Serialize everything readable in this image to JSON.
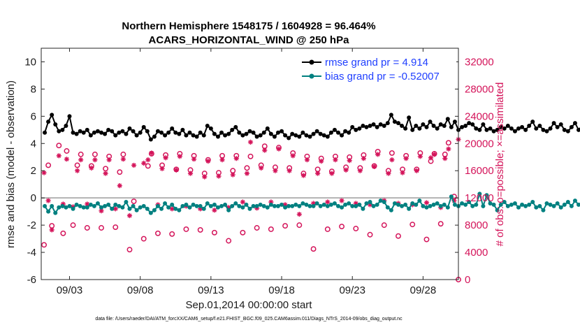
{
  "chart_data": {
    "type": "line",
    "title_line1": "Northern Hemisphere 1548175 / 1604928 = 96.464%",
    "title_line2": "ACARS_HORIZONTAL_WIND @ 250 hPa",
    "ylabel": "rmse and bias (model - observation)",
    "y2label": "# of obs: o=possible; ×=assimilated",
    "xlabel": "Sep.01,2014 00:00:00 start",
    "footer": "data file: /Users/raeder/DAI/ATM_forcXX/CAM6_setup/f.e21.FHIST_BGC.f09_025.CAM6assim.011/Diags_NTrS_2014-09/obs_diag_output.nc",
    "xlim": [
      1,
      30.5
    ],
    "ylim": [
      -6,
      11
    ],
    "y2lim": [
      0,
      34000
    ],
    "yticks": [
      "-6",
      "-4",
      "-2",
      "0",
      "2",
      "4",
      "6",
      "8",
      "10"
    ],
    "y2ticks": [
      "0",
      "4000",
      "8000",
      "12000",
      "16000",
      "20000",
      "24000",
      "28000",
      "32000"
    ],
    "xticks": [
      {
        "day": 3,
        "label": "09/03"
      },
      {
        "day": 8,
        "label": "09/08"
      },
      {
        "day": 13,
        "label": "09/13"
      },
      {
        "day": 18,
        "label": "09/18"
      },
      {
        "day": 23,
        "label": "09/23"
      },
      {
        "day": 28,
        "label": "09/28"
      }
    ],
    "zero_line": 0,
    "bin_hours": 6,
    "series": [
      {
        "name": "rmse grand pr = 4.914",
        "color": "#000000",
        "values": [
          4.8,
          5.6,
          6.1,
          5.4,
          4.9,
          5.0,
          5.3,
          6.0,
          4.8,
          4.7,
          4.9,
          4.8,
          5.0,
          4.6,
          4.8,
          4.9,
          4.8,
          4.7,
          5.0,
          4.9,
          4.6,
          4.8,
          4.9,
          4.7,
          5.1,
          4.9,
          4.6,
          4.8,
          5.2,
          4.9,
          4.3,
          4.5,
          4.9,
          4.8,
          4.6,
          4.8,
          5.1,
          4.8,
          4.7,
          5.0,
          4.6,
          4.8,
          4.6,
          4.5,
          4.8,
          4.6,
          5.3,
          5.1,
          4.7,
          4.5,
          4.8,
          4.6,
          4.7,
          5.0,
          5.2,
          4.8,
          4.6,
          4.7,
          4.9,
          4.8,
          4.5,
          4.6,
          4.8,
          5.1,
          4.7,
          4.5,
          4.8,
          4.9,
          4.6,
          4.4,
          4.7,
          4.6,
          4.5,
          4.8,
          4.6,
          4.5,
          4.7,
          4.9,
          4.7,
          4.6,
          4.5,
          4.8,
          5.0,
          4.8,
          4.6,
          4.9,
          4.8,
          5.2,
          5.0,
          5.1,
          5.3,
          5.2,
          5.3,
          5.4,
          5.2,
          5.4,
          5.3,
          5.5,
          6.1,
          5.6,
          5.5,
          5.3,
          5.1,
          5.9,
          5.0,
          5.3,
          5.1,
          5.4,
          5.2,
          5.6,
          5.3,
          5.1,
          5.4,
          5.3,
          5.8,
          5.2,
          5.6,
          5.0,
          5.2,
          5.3,
          5.5,
          5.4,
          5.1,
          5.0,
          5.4,
          5.0,
          5.1,
          4.9,
          5.0,
          5.2,
          5.1,
          5.3,
          5.1,
          4.9,
          5.1,
          5.2,
          5.0,
          5.3,
          5.6,
          5.1,
          5.3,
          5.0,
          4.9,
          5.1,
          5.5,
          5.2,
          5.4,
          5.0,
          4.9,
          5.2,
          5.5,
          5.0,
          5.3,
          5.6,
          5.2,
          5.4,
          5.9,
          5.4,
          5.7,
          5.2,
          5.4,
          5.8,
          5.6,
          5.5,
          5.1,
          5.3,
          5.0,
          4.7,
          5.1,
          5.3,
          5.2,
          5.6,
          5.4,
          5.5,
          5.7,
          5.8,
          5.6,
          5.3
        ]
      },
      {
        "name": "bias grand pr = -0.52007",
        "color": "#008080",
        "values": [
          -0.6,
          -1.0,
          -0.6,
          -1.1,
          -0.7,
          -0.6,
          -0.7,
          -0.6,
          -0.8,
          -0.5,
          -0.6,
          -0.7,
          -0.7,
          -0.5,
          -0.6,
          -0.4,
          -0.7,
          -0.6,
          -0.5,
          -0.8,
          -0.5,
          -0.6,
          -0.7,
          -0.3,
          -0.8,
          -0.6,
          -0.9,
          -0.7,
          -0.6,
          -0.8,
          -1.1,
          -0.9,
          -0.6,
          -0.8,
          -0.4,
          -0.7,
          -0.5,
          -0.8,
          -0.9,
          -0.6,
          -0.5,
          -0.7,
          -0.5,
          -0.6,
          -0.6,
          -0.8,
          -0.4,
          -0.6,
          -0.5,
          -0.7,
          -0.6,
          -0.5,
          -0.9,
          -0.6,
          -0.4,
          -0.6,
          -0.7,
          -0.5,
          -0.8,
          -0.6,
          -0.6,
          -0.5,
          -0.6,
          -0.7,
          -0.5,
          -0.6,
          -0.6,
          -0.5,
          -0.7,
          -0.6,
          -0.6,
          -0.5,
          -0.6,
          -0.4,
          -0.5,
          -0.6,
          -0.6,
          -0.4,
          -0.6,
          -0.5,
          -0.6,
          -0.5,
          -0.4,
          -0.6,
          -0.7,
          -0.5,
          -0.4,
          -0.6,
          -0.6,
          -0.5,
          -0.8,
          -0.4,
          -0.3,
          -0.6,
          -0.5,
          -0.2,
          -0.3,
          -0.7,
          -0.9,
          -0.4,
          -0.5,
          -0.6,
          -0.5,
          -0.8,
          -0.4,
          -0.5,
          -0.2,
          -0.6,
          -0.7,
          -0.6,
          -0.5,
          -0.4,
          -0.6,
          -0.5,
          -0.7,
          0.1,
          -0.5,
          -0.6,
          -0.4,
          -0.5,
          -0.3,
          -0.6,
          -0.5,
          0.3,
          -0.6,
          0.2,
          -0.4,
          -0.5,
          -0.9,
          -0.5,
          -0.3,
          -0.6,
          -0.5,
          -0.4,
          -0.7,
          -0.5,
          -0.6,
          -0.5,
          -0.3,
          -0.7,
          -0.6,
          -0.9,
          -0.4,
          -0.5,
          -0.6,
          -0.4,
          -0.7,
          -0.5,
          -0.3,
          -0.6,
          -0.2,
          -0.5,
          -0.6,
          -0.7,
          -0.5,
          -0.6,
          -0.3,
          -0.6,
          -0.4,
          -0.6,
          -0.4,
          -0.5,
          -0.6,
          -0.3,
          -0.5,
          -0.7,
          -0.5,
          -0.4,
          -0.9,
          -0.6,
          -0.5,
          -0.4,
          -0.6,
          -0.5,
          -0.7,
          -0.5,
          -0.8,
          -0.4,
          -0.5,
          -0.6
        ]
      }
    ],
    "obs_possible": [
      {
        "day": 1.2,
        "v": 5100
      },
      {
        "day": 1.5,
        "v": 16800
      },
      {
        "day": 1.75,
        "v": 7900
      },
      {
        "day": 2.25,
        "v": 19700
      },
      {
        "day": 2.55,
        "v": 6800
      },
      {
        "day": 2.8,
        "v": 18900
      },
      {
        "day": 3.25,
        "v": 8000
      },
      {
        "day": 3.55,
        "v": 16800
      },
      {
        "day": 3.8,
        "v": 18400
      },
      {
        "day": 4.25,
        "v": 7600
      },
      {
        "day": 4.55,
        "v": 16700
      },
      {
        "day": 4.8,
        "v": 18400
      },
      {
        "day": 5.25,
        "v": 7600
      },
      {
        "day": 5.55,
        "v": 16300
      },
      {
        "day": 5.8,
        "v": 18100
      },
      {
        "day": 6.25,
        "v": 7700
      },
      {
        "day": 6.55,
        "v": 15800
      },
      {
        "day": 6.8,
        "v": 18400
      },
      {
        "day": 7.25,
        "v": 4400
      },
      {
        "day": 7.55,
        "v": 11500
      },
      {
        "day": 8.25,
        "v": 6000
      },
      {
        "day": 8.55,
        "v": 16700
      },
      {
        "day": 8.8,
        "v": 18500
      },
      {
        "day": 9.25,
        "v": 6800
      },
      {
        "day": 9.55,
        "v": 16800
      },
      {
        "day": 9.8,
        "v": 18300
      },
      {
        "day": 10.25,
        "v": 6700
      },
      {
        "day": 10.55,
        "v": 16200
      },
      {
        "day": 10.8,
        "v": 18500
      },
      {
        "day": 11.25,
        "v": 7400
      },
      {
        "day": 11.55,
        "v": 16100
      },
      {
        "day": 11.8,
        "v": 18200
      },
      {
        "day": 12.25,
        "v": 7300
      },
      {
        "day": 12.55,
        "v": 15600
      },
      {
        "day": 12.8,
        "v": 17600
      },
      {
        "day": 13.25,
        "v": 6900
      },
      {
        "day": 13.55,
        "v": 15700
      },
      {
        "day": 13.8,
        "v": 18200
      },
      {
        "day": 14.25,
        "v": 5700
      },
      {
        "day": 14.55,
        "v": 16000
      },
      {
        "day": 14.8,
        "v": 18200
      },
      {
        "day": 15.25,
        "v": 6900
      },
      {
        "day": 15.55,
        "v": 16400
      },
      {
        "day": 15.8,
        "v": 18100
      },
      {
        "day": 16.25,
        "v": 7600
      },
      {
        "day": 16.55,
        "v": 16800
      },
      {
        "day": 16.8,
        "v": 19600
      },
      {
        "day": 17.25,
        "v": 7400
      },
      {
        "day": 17.55,
        "v": 16500
      },
      {
        "day": 17.8,
        "v": 19400
      },
      {
        "day": 18.25,
        "v": 7900
      },
      {
        "day": 18.55,
        "v": 16400
      },
      {
        "day": 18.8,
        "v": 18600
      },
      {
        "day": 19.25,
        "v": 8000
      },
      {
        "day": 19.55,
        "v": 15600
      },
      {
        "day": 19.8,
        "v": 18100
      },
      {
        "day": 20.25,
        "v": 4500
      },
      {
        "day": 20.55,
        "v": 16200
      },
      {
        "day": 20.8,
        "v": 17800
      },
      {
        "day": 21.25,
        "v": 7400
      },
      {
        "day": 21.55,
        "v": 15900
      },
      {
        "day": 21.8,
        "v": 18100
      },
      {
        "day": 22.25,
        "v": 7800
      },
      {
        "day": 22.55,
        "v": 16500
      },
      {
        "day": 22.8,
        "v": 18000
      },
      {
        "day": 23.25,
        "v": 7500
      },
      {
        "day": 23.55,
        "v": 16400
      },
      {
        "day": 23.8,
        "v": 18300
      },
      {
        "day": 24.25,
        "v": 6600
      },
      {
        "day": 24.55,
        "v": 16700
      },
      {
        "day": 24.8,
        "v": 18800
      },
      {
        "day": 25.25,
        "v": 8000
      },
      {
        "day": 25.55,
        "v": 16000
      },
      {
        "day": 25.8,
        "v": 18600
      },
      {
        "day": 26.25,
        "v": 6400
      },
      {
        "day": 26.55,
        "v": 16200
      },
      {
        "day": 26.8,
        "v": 18200
      },
      {
        "day": 27.25,
        "v": 8100
      },
      {
        "day": 27.55,
        "v": 16200
      },
      {
        "day": 27.8,
        "v": 18600
      },
      {
        "day": 28.25,
        "v": 5900
      },
      {
        "day": 28.55,
        "v": 17400
      },
      {
        "day": 28.8,
        "v": 18500
      },
      {
        "day": 29.25,
        "v": 8200
      },
      {
        "day": 29.55,
        "v": 18400
      },
      {
        "day": 29.8,
        "v": 20100
      },
      {
        "day": 30.2,
        "v": 12200
      },
      {
        "day": 30.5,
        "v": 0
      }
    ],
    "obs_assimilated": [
      {
        "day": 1.2,
        "v": 15700
      },
      {
        "day": 1.5,
        "v": 11600
      },
      {
        "day": 1.75,
        "v": 7300
      },
      {
        "day": 2.25,
        "v": 18200
      },
      {
        "day": 2.55,
        "v": 11100
      },
      {
        "day": 2.8,
        "v": 17700
      },
      {
        "day": 3.25,
        "v": 10700
      },
      {
        "day": 3.55,
        "v": 16000
      },
      {
        "day": 3.8,
        "v": 17600
      },
      {
        "day": 4.25,
        "v": 11100
      },
      {
        "day": 4.55,
        "v": 16400
      },
      {
        "day": 4.8,
        "v": 17600
      },
      {
        "day": 5.25,
        "v": 10100
      },
      {
        "day": 5.55,
        "v": 15600
      },
      {
        "day": 5.8,
        "v": 17600
      },
      {
        "day": 6.25,
        "v": 10400
      },
      {
        "day": 6.55,
        "v": 13800
      },
      {
        "day": 6.8,
        "v": 17700
      },
      {
        "day": 7.25,
        "v": 9400
      },
      {
        "day": 7.55,
        "v": 16800
      },
      {
        "day": 8.25,
        "v": 17100
      },
      {
        "day": 8.55,
        "v": 17600
      },
      {
        "day": 8.8,
        "v": 18600
      },
      {
        "day": 9.25,
        "v": 11000
      },
      {
        "day": 9.55,
        "v": 16300
      },
      {
        "day": 9.8,
        "v": 17900
      },
      {
        "day": 10.25,
        "v": 10400
      },
      {
        "day": 10.55,
        "v": 16100
      },
      {
        "day": 10.8,
        "v": 18100
      },
      {
        "day": 11.25,
        "v": 10800
      },
      {
        "day": 11.55,
        "v": 15600
      },
      {
        "day": 11.8,
        "v": 17700
      },
      {
        "day": 12.25,
        "v": 10400
      },
      {
        "day": 12.55,
        "v": 15100
      },
      {
        "day": 12.8,
        "v": 17400
      },
      {
        "day": 13.25,
        "v": 10200
      },
      {
        "day": 13.55,
        "v": 15200
      },
      {
        "day": 13.8,
        "v": 17600
      },
      {
        "day": 14.25,
        "v": 10600
      },
      {
        "day": 14.55,
        "v": 15400
      },
      {
        "day": 14.8,
        "v": 17800
      },
      {
        "day": 15.25,
        "v": 11400
      },
      {
        "day": 15.55,
        "v": 15600
      },
      {
        "day": 15.8,
        "v": 20200
      },
      {
        "day": 16.25,
        "v": 10500
      },
      {
        "day": 16.55,
        "v": 16400
      },
      {
        "day": 16.8,
        "v": 19000
      },
      {
        "day": 17.25,
        "v": 11400
      },
      {
        "day": 17.55,
        "v": 16000
      },
      {
        "day": 17.8,
        "v": 19200
      },
      {
        "day": 18.25,
        "v": 11000
      },
      {
        "day": 18.55,
        "v": 16000
      },
      {
        "day": 18.8,
        "v": 18200
      },
      {
        "day": 19.25,
        "v": 9600
      },
      {
        "day": 19.55,
        "v": 15300
      },
      {
        "day": 19.8,
        "v": 17600
      },
      {
        "day": 20.25,
        "v": 11200
      },
      {
        "day": 20.55,
        "v": 15600
      },
      {
        "day": 20.8,
        "v": 17400
      },
      {
        "day": 21.25,
        "v": 11400
      },
      {
        "day": 21.55,
        "v": 15600
      },
      {
        "day": 21.8,
        "v": 17600
      },
      {
        "day": 22.25,
        "v": 11600
      },
      {
        "day": 22.55,
        "v": 16100
      },
      {
        "day": 22.8,
        "v": 17500
      },
      {
        "day": 23.25,
        "v": 11200
      },
      {
        "day": 23.55,
        "v": 16000
      },
      {
        "day": 23.8,
        "v": 17800
      },
      {
        "day": 24.25,
        "v": 11000
      },
      {
        "day": 24.55,
        "v": 16600
      },
      {
        "day": 24.8,
        "v": 18400
      },
      {
        "day": 25.25,
        "v": 11600
      },
      {
        "day": 25.55,
        "v": 15600
      },
      {
        "day": 25.8,
        "v": 17600
      },
      {
        "day": 26.25,
        "v": 11200
      },
      {
        "day": 26.55,
        "v": 15700
      },
      {
        "day": 26.8,
        "v": 17800
      },
      {
        "day": 27.25,
        "v": 11000
      },
      {
        "day": 27.55,
        "v": 16000
      },
      {
        "day": 27.8,
        "v": 18100
      },
      {
        "day": 28.25,
        "v": 11300
      },
      {
        "day": 28.55,
        "v": 17900
      },
      {
        "day": 28.8,
        "v": 18400
      },
      {
        "day": 29.25,
        "v": 10600
      },
      {
        "day": 29.55,
        "v": 17800
      },
      {
        "day": 29.8,
        "v": 19200
      },
      {
        "day": 30.2,
        "v": 11600
      },
      {
        "day": 30.5,
        "v": 20600
      }
    ]
  }
}
